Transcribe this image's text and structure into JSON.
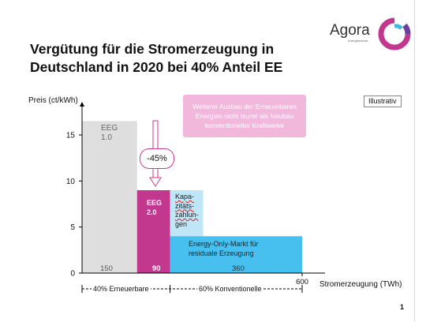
{
  "slide": {
    "title_line1": "Vergütung für die Stromerzeugung in",
    "title_line2": "Deutschland in 2020 bei 40% Anteil EE",
    "logo": {
      "name": "Agora",
      "sub": "Energiewende",
      "brand_color": "#c2388f",
      "accent_color": "#3fb8e6"
    },
    "page_number": "1"
  },
  "chart_data": {
    "type": "bar",
    "title": "",
    "ylabel": "Preis (ct/kWh)",
    "xlabel": "Stromerzeugung (TWh)",
    "ylim": [
      0,
      18
    ],
    "xlim": [
      0,
      600
    ],
    "yticks": [
      0,
      5,
      10,
      15
    ],
    "xticks_labeled": [
      600
    ],
    "segments": [
      {
        "label_lines": [
          "EEG",
          "1.0"
        ],
        "x_start": 0,
        "width": 150,
        "value": 16.5,
        "width_label": "150",
        "color": "#dedede"
      },
      {
        "label_lines": [
          "EEG",
          "2.0"
        ],
        "x_start": 150,
        "width": 90,
        "value": 9,
        "width_label": "90",
        "color": "#c2388f"
      },
      {
        "label_lines": [
          "Kapa-",
          "zitäts-",
          "zahlun-",
          "gen"
        ],
        "x_start": 240,
        "width": 90,
        "value": 9,
        "base": 4,
        "color": "#bfe6f6"
      },
      {
        "label_lines": [
          "Energy-Only-Markt für",
          "residuale Erzeugung"
        ],
        "x_start": 240,
        "width": 360,
        "value": 4,
        "width_label": "360",
        "color": "#47c0ef"
      }
    ],
    "annotations": {
      "reduction": "-45%",
      "note": "Weiterer Ausbau der Erneuerbaren Energien nicht teurer als Neubau konventioneller Kraftwerke",
      "badge": "Illustrativ",
      "span_ee": "40% Erneuerbare",
      "span_konv": "60% Konventionelle"
    }
  }
}
